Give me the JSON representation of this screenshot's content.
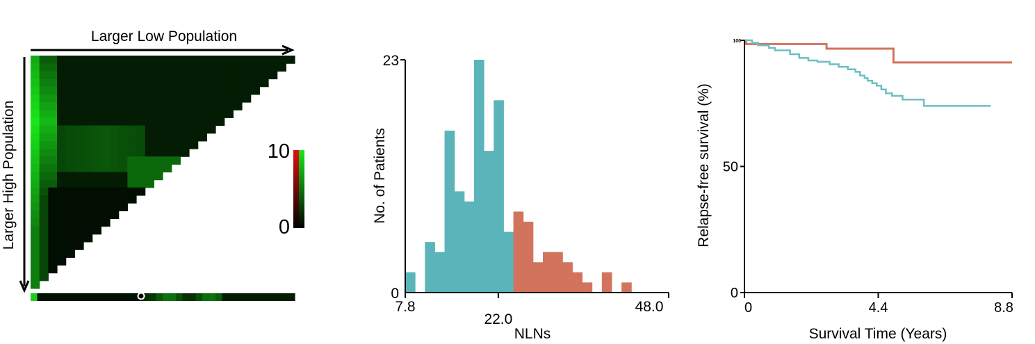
{
  "figure": {
    "colors": {
      "heatmap_low": "#000000",
      "heatmap_high": "#19e619",
      "scale_red": "#e01010",
      "hist_low": "#5cb4bb",
      "hist_high": "#d2735d",
      "km_low": "#6bbfc4",
      "km_high": "#d2735d"
    }
  },
  "chart_data": [
    {
      "type": "heatmap",
      "x_axis_label": "Larger Low Population",
      "y_axis_label": "Larger High Population",
      "colorscale": {
        "min_label": "0",
        "max_label": "10",
        "min": 0,
        "max": 10,
        "colors": [
          "#000000",
          "#e01010",
          "#19e619"
        ]
      },
      "grid_size": 30,
      "shape": "upper-left triangle",
      "marker": "selected cutoff on bottom bar"
    },
    {
      "type": "bar",
      "xlabel": "NLNs",
      "ylabel": "No. of Patients",
      "x_tick_labels": [
        "7.8",
        "22.0",
        "48.0"
      ],
      "y_tick_labels": [
        "0",
        "23"
      ],
      "xlim": [
        7.8,
        48.0
      ],
      "ylim": [
        0,
        23
      ],
      "bin_width": 1.5,
      "threshold": 22.0,
      "bins": [
        {
          "start": 7.8,
          "value": 2,
          "group": "low"
        },
        {
          "start": 9.3,
          "value": 0,
          "group": "low"
        },
        {
          "start": 10.8,
          "value": 5,
          "group": "low"
        },
        {
          "start": 12.3,
          "value": 4,
          "group": "low"
        },
        {
          "start": 13.8,
          "value": 16,
          "group": "low"
        },
        {
          "start": 15.3,
          "value": 10,
          "group": "low"
        },
        {
          "start": 16.8,
          "value": 9,
          "group": "low"
        },
        {
          "start": 18.3,
          "value": 23,
          "group": "low"
        },
        {
          "start": 19.8,
          "value": 14,
          "group": "low"
        },
        {
          "start": 21.3,
          "value": 19,
          "group": "low"
        },
        {
          "start": 22.8,
          "value": 6,
          "group": "low"
        },
        {
          "start": 24.3,
          "value": 8,
          "group": "high"
        },
        {
          "start": 25.8,
          "value": 7,
          "group": "high"
        },
        {
          "start": 27.3,
          "value": 3,
          "group": "high"
        },
        {
          "start": 28.8,
          "value": 4,
          "group": "high"
        },
        {
          "start": 30.3,
          "value": 4,
          "group": "high"
        },
        {
          "start": 31.8,
          "value": 3,
          "group": "high"
        },
        {
          "start": 33.3,
          "value": 2,
          "group": "high"
        },
        {
          "start": 34.8,
          "value": 1,
          "group": "high"
        },
        {
          "start": 36.3,
          "value": 0,
          "group": "high"
        },
        {
          "start": 37.8,
          "value": 2,
          "group": "high"
        },
        {
          "start": 39.3,
          "value": 0,
          "group": "high"
        },
        {
          "start": 40.8,
          "value": 1,
          "group": "high"
        },
        {
          "start": 42.3,
          "value": 0,
          "group": "high"
        }
      ]
    },
    {
      "type": "line",
      "xlabel": "Survival Time (Years)",
      "ylabel": "Relapse-free survival (%)",
      "x_tick_labels": [
        "0",
        "4.4",
        "8.8"
      ],
      "y_tick_labels": [
        "0",
        "50",
        "100"
      ],
      "xlim": [
        0,
        8.8
      ],
      "ylim": [
        0,
        100
      ],
      "step": true,
      "series": [
        {
          "group": "high",
          "x": [
            0,
            0.05,
            2.1,
            2.7,
            4.9,
            8.8
          ],
          "y": [
            100,
            98.5,
            98.5,
            96.7,
            91.2,
            91.2
          ]
        },
        {
          "group": "low",
          "x": [
            0,
            0.25,
            0.45,
            0.8,
            1.0,
            1.5,
            1.8,
            2.1,
            2.4,
            2.8,
            3.1,
            3.4,
            3.65,
            3.8,
            3.95,
            4.05,
            4.2,
            4.35,
            4.5,
            4.65,
            4.85,
            5.2,
            5.9,
            8.1
          ],
          "y": [
            100,
            99,
            98,
            97,
            96,
            94.5,
            93,
            92,
            91.5,
            90.5,
            89.5,
            88.5,
            87.5,
            86,
            85,
            84,
            83,
            82,
            80.5,
            79,
            78,
            76.5,
            74,
            74
          ]
        }
      ]
    }
  ]
}
